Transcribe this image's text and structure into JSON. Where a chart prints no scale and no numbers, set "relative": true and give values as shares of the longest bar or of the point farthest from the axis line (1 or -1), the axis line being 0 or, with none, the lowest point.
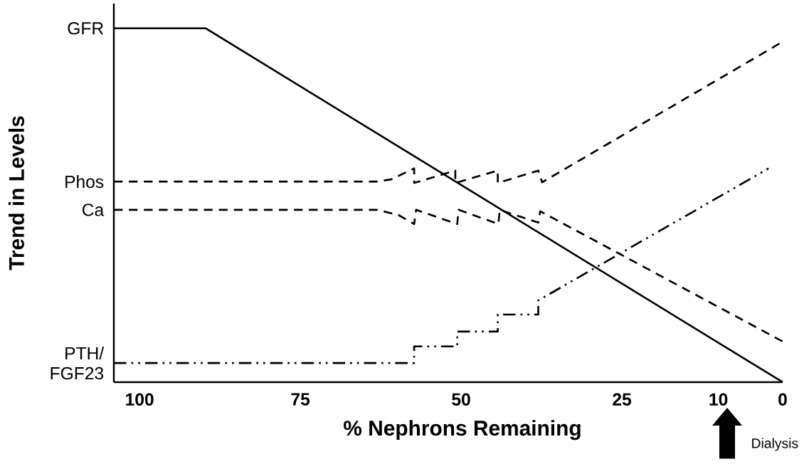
{
  "chart_data": {
    "type": "line",
    "relative": true,
    "xlabel": "% Nephrons Remaining",
    "ylabel": "Trend in Levels",
    "xlim": [
      104,
      0
    ],
    "xticks": [
      100,
      75,
      50,
      25,
      10,
      0
    ],
    "series": [
      {
        "name": "GFR",
        "color": "#000000",
        "line_style": "solid",
        "x": [
          104,
          89.7,
          0
        ],
        "values": [
          1.0,
          1.0,
          0.0
        ]
      },
      {
        "name": "Phos",
        "color": "#000000",
        "line_style": "dashed",
        "x": [
          104,
          63.1,
          60.9,
          57.3,
          57.3,
          50.9,
          50.9,
          44.3,
          44.3,
          38.0,
          37.4,
          0.2
        ],
        "values": [
          0.567,
          0.567,
          0.573,
          0.604,
          0.563,
          0.598,
          0.563,
          0.598,
          0.563,
          0.598,
          0.565,
          0.96
        ]
      },
      {
        "name": "Ca",
        "color": "#000000",
        "line_style": "dashed",
        "x": [
          104,
          63.1,
          59.8,
          57.3,
          57.0,
          50.6,
          50.4,
          44.2,
          44.0,
          38.0,
          37.7,
          0
        ],
        "values": [
          0.487,
          0.487,
          0.473,
          0.447,
          0.487,
          0.447,
          0.487,
          0.447,
          0.487,
          0.451,
          0.483,
          0.115
        ]
      },
      {
        "name": "PTH/ FGF23",
        "color": "#000000",
        "line_style": "dashdotdot",
        "x": [
          104,
          57.3,
          57.3,
          50.6,
          50.6,
          44.3,
          44.3,
          38.0,
          38.0,
          2.2
        ],
        "values": [
          0.054,
          0.054,
          0.101,
          0.101,
          0.143,
          0.143,
          0.191,
          0.191,
          0.231,
          0.604
        ]
      }
    ],
    "annotations": [
      "Dialysis"
    ]
  }
}
